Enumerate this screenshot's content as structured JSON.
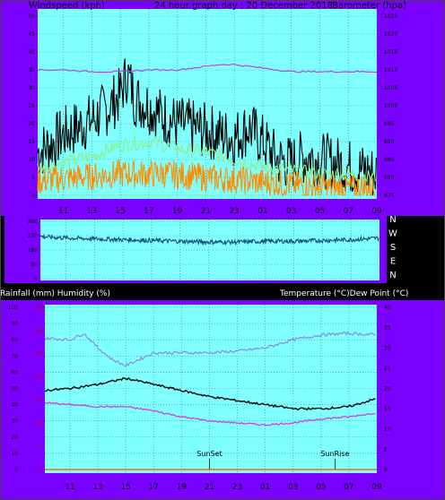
{
  "colors": {
    "panel_bg": "#7a00ff",
    "plot_bg": "#80ffff",
    "wind_speed": "#000000",
    "wind_avg": "#90ee90",
    "wind_orange": "#ff8c00",
    "barometer": "#c040e0",
    "direction": "#1a4a7a",
    "humidity": "#8a8ae6",
    "temperature": "#000000",
    "dew_point": "#d040e0",
    "grid": "#3a8a8a"
  },
  "chart_data": [
    {
      "type": "line",
      "header": {
        "left": "Windspeed (kph)",
        "center": "24 hour graph day : 20 December 2018",
        "right": "Barometer (hpa)"
      },
      "left_axis": {
        "ticks": [
          "0",
          "5",
          "10",
          "15",
          "20",
          "25",
          "30",
          "35",
          "40",
          "45",
          "50"
        ],
        "range": [
          0,
          50
        ]
      },
      "right_axis": {
        "ticks": [
          "975",
          "980",
          "985",
          "990",
          "995",
          "1000",
          "1005",
          "1010",
          "1015",
          "1020",
          "1025"
        ],
        "range": [
          975,
          1025
        ]
      },
      "x_ticks": [
        "11",
        "13",
        "15",
        "17",
        "19",
        "21",
        "23",
        "01",
        "03",
        "05",
        "07",
        "09"
      ],
      "series": [
        {
          "key": "windspeed",
          "hours": [
            9.2,
            10,
            11,
            12,
            13,
            14,
            15,
            15.5,
            16,
            17,
            18,
            19,
            20,
            21,
            22,
            23,
            24,
            25,
            26,
            27,
            28,
            29,
            30,
            31,
            32,
            33
          ],
          "values": [
            12,
            14,
            17,
            19,
            21,
            24,
            28,
            34,
            27,
            25,
            22,
            20,
            19,
            18,
            17,
            16,
            19,
            15,
            10,
            9,
            11,
            10,
            9,
            8,
            7,
            6
          ]
        },
        {
          "key": "wind_avg",
          "hours": [
            9.2,
            11,
            13,
            15,
            17,
            19,
            21,
            23,
            25,
            27,
            29,
            31,
            33
          ],
          "values": [
            8,
            9,
            11,
            14,
            15,
            13,
            12,
            10,
            8,
            7,
            6,
            6,
            5
          ]
        },
        {
          "key": "wind_orange",
          "hours": [
            9.2,
            12,
            15,
            18,
            21,
            24,
            27,
            30,
            33
          ],
          "values": [
            4,
            5,
            6,
            6,
            5,
            4,
            3,
            2,
            2
          ]
        },
        {
          "key": "barometer",
          "hours": [
            9.2,
            11,
            13,
            15,
            17,
            19,
            21,
            22,
            23,
            25,
            27,
            29,
            31,
            33
          ],
          "values": [
            1010,
            1010,
            1009.5,
            1009.5,
            1010,
            1010,
            1011,
            1011.5,
            1011.5,
            1010.5,
            1009.5,
            1009.5,
            1009.5,
            1009.5
          ]
        }
      ]
    },
    {
      "type": "line",
      "direction_labels": [
        "N",
        "W",
        "S",
        "E",
        "N"
      ],
      "left_axis": {
        "ticks": [
          "0",
          "90",
          "180",
          "270",
          "360"
        ],
        "range": [
          0,
          360
        ]
      },
      "series": [
        {
          "key": "wind_direction",
          "hours": [
            9.2,
            11,
            13,
            15,
            17,
            19,
            21,
            23,
            25,
            27,
            29,
            31,
            33
          ],
          "values": [
            265,
            255,
            250,
            245,
            240,
            235,
            230,
            230,
            235,
            235,
            240,
            245,
            255
          ]
        }
      ]
    },
    {
      "type": "line",
      "header": {
        "left": "Rainfall (mm)  Humidity (%)",
        "right": "Temperature (°C)Dew Point (°C)"
      },
      "left_axis": {
        "ticks": [
          "0",
          "10",
          "20",
          "30",
          "40",
          "50",
          "60",
          "70",
          "80",
          "90",
          "100"
        ],
        "range": [
          0,
          100
        ]
      },
      "left_axis_red": {
        "ticks": [
          "0",
          "5",
          "10",
          "15",
          "20",
          "25",
          "30",
          "35"
        ],
        "range": [
          0,
          35
        ]
      },
      "right_axis": {
        "ticks": [
          "0",
          "5",
          "10",
          "15",
          "20",
          "25",
          "30",
          "35",
          "40"
        ],
        "range": [
          0,
          40
        ]
      },
      "x_ticks": [
        "11",
        "13",
        "15",
        "17",
        "19",
        "21",
        "23",
        "01",
        "03",
        "05",
        "07",
        "09"
      ],
      "annotations": [
        {
          "label": "SunSet",
          "hour": 21
        },
        {
          "label": "SunRise",
          "hour": 6
        }
      ],
      "series": [
        {
          "key": "humidity",
          "hours": [
            9.2,
            11,
            12,
            13,
            14,
            15,
            17,
            19,
            21,
            23,
            25,
            27,
            29,
            31,
            33
          ],
          "values": [
            81,
            80,
            84,
            75,
            68,
            64,
            72,
            72,
            72,
            73,
            75,
            80,
            83,
            84,
            83
          ]
        },
        {
          "key": "temperature",
          "hours": [
            9.2,
            11,
            13,
            15,
            17,
            19,
            21,
            23,
            25,
            27,
            29,
            31,
            33
          ],
          "values": [
            19.5,
            20,
            21,
            22.5,
            21,
            19.5,
            18,
            17,
            16,
            15,
            15,
            15.5,
            17.5
          ]
        },
        {
          "key": "dew_point",
          "hours": [
            9.2,
            11,
            13,
            15,
            17,
            19,
            21,
            23,
            25,
            27,
            29,
            31,
            33
          ],
          "values": [
            16.5,
            16,
            15.5,
            15.5,
            14.5,
            13,
            12,
            11.5,
            11,
            11.5,
            12.5,
            13,
            14
          ]
        },
        {
          "key": "rainfall",
          "hours": [
            9.2,
            33
          ],
          "values": [
            0,
            0
          ]
        }
      ]
    }
  ]
}
